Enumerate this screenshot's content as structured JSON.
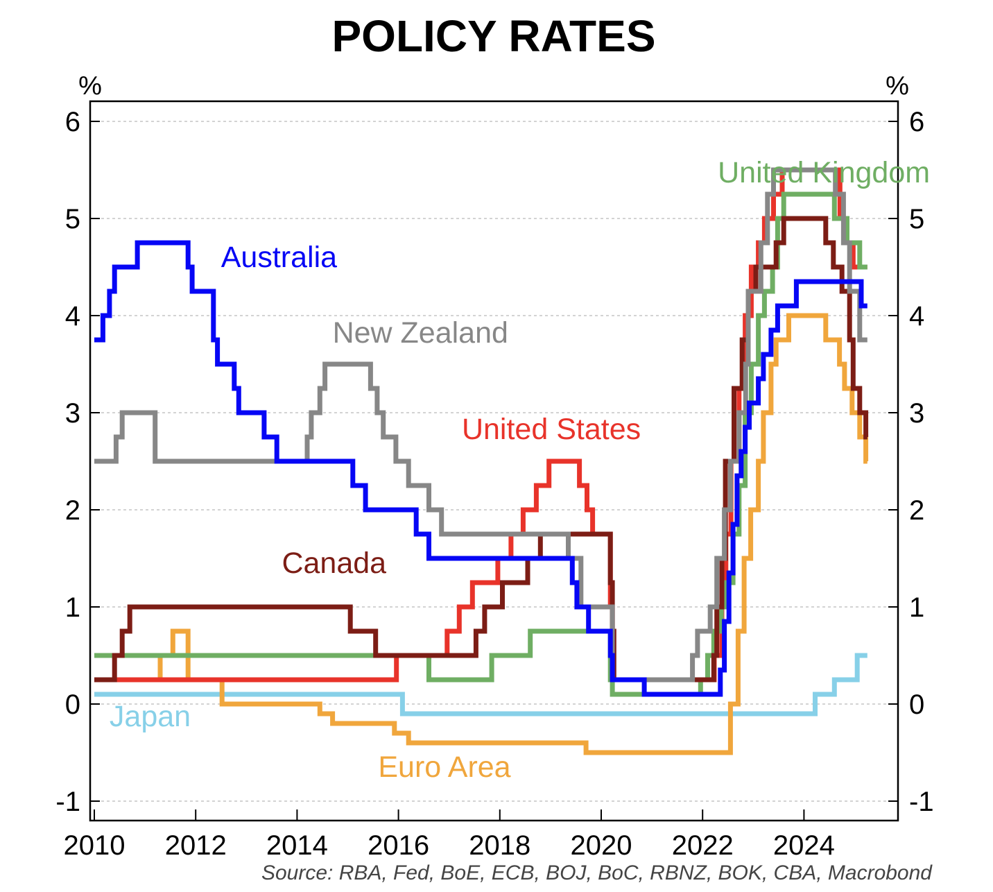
{
  "chart_data": {
    "type": "line",
    "title": "POLICY RATES",
    "ylabel_left": "%",
    "ylabel_right": "%",
    "ylim": [
      -1.3,
      6.2
    ],
    "yticks": [
      -1,
      0,
      1,
      2,
      3,
      4,
      5,
      6
    ],
    "xlim": [
      2010.0,
      2026.0
    ],
    "xticks": [
      2010,
      2012,
      2014,
      2016,
      2018,
      2020,
      2022,
      2024
    ],
    "grid": true,
    "source": "Source: RBA, Fed, BoE, ECB, BOJ, BoC, RBNZ, BOK, CBA, Macrobond",
    "series": [
      {
        "name": "Japan",
        "color": "#87d0e8",
        "steps": [
          [
            2010.0,
            0.1
          ],
          [
            2016.08,
            -0.1
          ],
          [
            2024.22,
            0.1
          ],
          [
            2024.6,
            0.25
          ],
          [
            2025.05,
            0.5
          ]
        ],
        "end": 2025.25
      },
      {
        "name": "Euro Area",
        "color": "#f0a63c",
        "steps": [
          [
            2010.0,
            0.25
          ],
          [
            2011.3,
            0.5
          ],
          [
            2011.55,
            0.75
          ],
          [
            2011.85,
            0.25
          ],
          [
            2012.52,
            0.0
          ],
          [
            2014.45,
            -0.1
          ],
          [
            2014.7,
            -0.2
          ],
          [
            2015.92,
            -0.3
          ],
          [
            2016.2,
            -0.4
          ],
          [
            2019.7,
            -0.5
          ],
          [
            2022.55,
            0.0
          ],
          [
            2022.7,
            0.75
          ],
          [
            2022.82,
            1.5
          ],
          [
            2022.95,
            2.0
          ],
          [
            2023.1,
            2.5
          ],
          [
            2023.2,
            3.0
          ],
          [
            2023.35,
            3.5
          ],
          [
            2023.45,
            3.75
          ],
          [
            2023.7,
            4.0
          ],
          [
            2024.43,
            3.75
          ],
          [
            2024.7,
            3.5
          ],
          [
            2024.8,
            3.25
          ],
          [
            2024.95,
            3.0
          ],
          [
            2025.1,
            2.75
          ],
          [
            2025.22,
            2.5
          ]
        ],
        "end": 2025.25
      },
      {
        "name": "United States",
        "color": "#e8332a",
        "steps": [
          [
            2010.0,
            0.25
          ],
          [
            2015.96,
            0.5
          ],
          [
            2016.96,
            0.75
          ],
          [
            2017.2,
            1.0
          ],
          [
            2017.46,
            1.25
          ],
          [
            2017.96,
            1.5
          ],
          [
            2018.22,
            1.75
          ],
          [
            2018.46,
            2.0
          ],
          [
            2018.72,
            2.25
          ],
          [
            2018.97,
            2.5
          ],
          [
            2019.57,
            2.25
          ],
          [
            2019.72,
            2.0
          ],
          [
            2019.83,
            1.75
          ],
          [
            2020.18,
            1.0
          ],
          [
            2020.22,
            0.25
          ],
          [
            2022.23,
            0.5
          ],
          [
            2022.38,
            1.0
          ],
          [
            2022.46,
            1.75
          ],
          [
            2022.56,
            2.5
          ],
          [
            2022.72,
            3.25
          ],
          [
            2022.84,
            4.0
          ],
          [
            2022.96,
            4.5
          ],
          [
            2023.1,
            4.75
          ],
          [
            2023.22,
            5.0
          ],
          [
            2023.4,
            5.25
          ],
          [
            2023.57,
            5.5
          ],
          [
            2024.71,
            5.0
          ],
          [
            2024.85,
            4.75
          ],
          [
            2024.97,
            4.5
          ]
        ],
        "end": 2025.25
      },
      {
        "name": "United Kingdom",
        "color": "#6fae63",
        "steps": [
          [
            2010.0,
            0.5
          ],
          [
            2016.6,
            0.25
          ],
          [
            2017.84,
            0.5
          ],
          [
            2018.6,
            0.75
          ],
          [
            2020.18,
            0.25
          ],
          [
            2020.22,
            0.1
          ],
          [
            2021.96,
            0.25
          ],
          [
            2022.1,
            0.5
          ],
          [
            2022.22,
            0.75
          ],
          [
            2022.37,
            1.0
          ],
          [
            2022.46,
            1.25
          ],
          [
            2022.6,
            1.75
          ],
          [
            2022.72,
            2.25
          ],
          [
            2022.84,
            3.0
          ],
          [
            2022.96,
            3.5
          ],
          [
            2023.1,
            4.0
          ],
          [
            2023.22,
            4.25
          ],
          [
            2023.38,
            4.5
          ],
          [
            2023.48,
            5.0
          ],
          [
            2023.6,
            5.25
          ],
          [
            2024.6,
            5.0
          ],
          [
            2024.85,
            4.75
          ],
          [
            2025.1,
            4.5
          ]
        ],
        "end": 2025.25
      },
      {
        "name": "Canada",
        "color": "#7c1d15",
        "steps": [
          [
            2010.0,
            0.25
          ],
          [
            2010.4,
            0.5
          ],
          [
            2010.55,
            0.75
          ],
          [
            2010.7,
            1.0
          ],
          [
            2015.05,
            0.75
          ],
          [
            2015.55,
            0.5
          ],
          [
            2017.53,
            0.75
          ],
          [
            2017.7,
            1.0
          ],
          [
            2018.05,
            1.25
          ],
          [
            2018.55,
            1.5
          ],
          [
            2018.8,
            1.75
          ],
          [
            2020.18,
            1.25
          ],
          [
            2020.22,
            0.75
          ],
          [
            2020.25,
            0.25
          ],
          [
            2022.22,
            0.5
          ],
          [
            2022.28,
            1.0
          ],
          [
            2022.38,
            1.5
          ],
          [
            2022.45,
            2.5
          ],
          [
            2022.62,
            3.25
          ],
          [
            2022.78,
            3.75
          ],
          [
            2022.9,
            4.25
          ],
          [
            2023.05,
            4.5
          ],
          [
            2023.45,
            4.75
          ],
          [
            2023.6,
            5.0
          ],
          [
            2024.43,
            4.75
          ],
          [
            2024.58,
            4.5
          ],
          [
            2024.75,
            4.25
          ],
          [
            2024.9,
            3.75
          ],
          [
            2024.97,
            3.25
          ],
          [
            2025.1,
            3.0
          ],
          [
            2025.22,
            2.75
          ]
        ],
        "end": 2025.25
      },
      {
        "name": "New Zealand",
        "color": "#878787",
        "steps": [
          [
            2010.0,
            2.5
          ],
          [
            2010.43,
            2.75
          ],
          [
            2010.55,
            3.0
          ],
          [
            2011.2,
            2.5
          ],
          [
            2014.2,
            2.75
          ],
          [
            2014.28,
            3.0
          ],
          [
            2014.45,
            3.25
          ],
          [
            2014.55,
            3.5
          ],
          [
            2015.45,
            3.25
          ],
          [
            2015.58,
            3.0
          ],
          [
            2015.7,
            2.75
          ],
          [
            2015.95,
            2.5
          ],
          [
            2016.2,
            2.25
          ],
          [
            2016.6,
            2.0
          ],
          [
            2016.85,
            1.75
          ],
          [
            2019.35,
            1.5
          ],
          [
            2019.6,
            1.0
          ],
          [
            2020.22,
            0.25
          ],
          [
            2021.8,
            0.5
          ],
          [
            2021.9,
            0.75
          ],
          [
            2022.15,
            1.0
          ],
          [
            2022.28,
            1.5
          ],
          [
            2022.43,
            2.0
          ],
          [
            2022.55,
            2.5
          ],
          [
            2022.72,
            3.0
          ],
          [
            2022.85,
            3.5
          ],
          [
            2022.9,
            4.25
          ],
          [
            2023.15,
            4.75
          ],
          [
            2023.28,
            5.25
          ],
          [
            2023.4,
            5.5
          ],
          [
            2024.62,
            5.25
          ],
          [
            2024.78,
            4.75
          ],
          [
            2024.9,
            4.25
          ],
          [
            2025.1,
            3.75
          ]
        ],
        "end": 2025.25
      },
      {
        "name": "Australia",
        "color": "#0606f5",
        "steps": [
          [
            2010.0,
            3.75
          ],
          [
            2010.17,
            4.0
          ],
          [
            2010.3,
            4.25
          ],
          [
            2010.4,
            4.5
          ],
          [
            2010.85,
            4.75
          ],
          [
            2011.85,
            4.5
          ],
          [
            2011.93,
            4.25
          ],
          [
            2012.35,
            3.75
          ],
          [
            2012.43,
            3.5
          ],
          [
            2012.76,
            3.25
          ],
          [
            2012.85,
            3.0
          ],
          [
            2013.35,
            2.75
          ],
          [
            2013.6,
            2.5
          ],
          [
            2015.1,
            2.25
          ],
          [
            2015.35,
            2.0
          ],
          [
            2016.35,
            1.75
          ],
          [
            2016.6,
            1.5
          ],
          [
            2019.43,
            1.25
          ],
          [
            2019.52,
            1.0
          ],
          [
            2019.75,
            0.75
          ],
          [
            2020.18,
            0.5
          ],
          [
            2020.22,
            0.25
          ],
          [
            2020.85,
            0.1
          ],
          [
            2022.35,
            0.35
          ],
          [
            2022.43,
            0.85
          ],
          [
            2022.52,
            1.35
          ],
          [
            2022.6,
            1.85
          ],
          [
            2022.68,
            2.35
          ],
          [
            2022.76,
            2.6
          ],
          [
            2022.84,
            2.85
          ],
          [
            2022.92,
            3.1
          ],
          [
            2023.1,
            3.35
          ],
          [
            2023.2,
            3.6
          ],
          [
            2023.35,
            3.85
          ],
          [
            2023.48,
            4.1
          ],
          [
            2023.85,
            4.35
          ],
          [
            2025.13,
            4.1
          ]
        ],
        "end": 2025.25
      }
    ],
    "annotations": [
      {
        "text": "United Kingdom",
        "series": "United Kingdom",
        "x": 2022.3,
        "y": 5.37
      },
      {
        "text": "Australia",
        "series": "Australia",
        "x": 2012.5,
        "y": 4.5
      },
      {
        "text": "New Zealand",
        "series": "New Zealand",
        "x": 2014.7,
        "y": 3.72
      },
      {
        "text": "United States",
        "series": "United States",
        "x": 2017.25,
        "y": 2.73
      },
      {
        "text": "Canada",
        "series": "Canada",
        "x": 2013.7,
        "y": 1.35
      },
      {
        "text": "Japan",
        "series": "Japan",
        "x": 2010.3,
        "y": -0.23
      },
      {
        "text": "Euro Area",
        "series": "Euro Area",
        "x": 2015.6,
        "y": -0.75
      }
    ]
  }
}
